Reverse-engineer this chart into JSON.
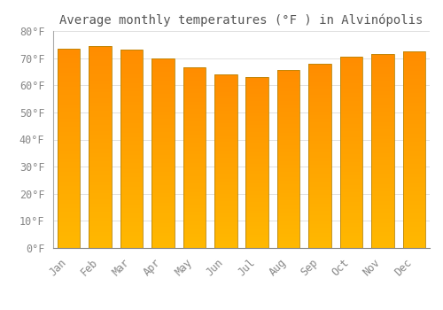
{
  "title": "Average monthly temperatures (°F ) in Alvinópolis",
  "months": [
    "Jan",
    "Feb",
    "Mar",
    "Apr",
    "May",
    "Jun",
    "Jul",
    "Aug",
    "Sep",
    "Oct",
    "Nov",
    "Dec"
  ],
  "values": [
    73.5,
    74.5,
    73.0,
    70.0,
    66.5,
    64.0,
    63.0,
    65.5,
    68.0,
    70.5,
    71.5,
    72.5
  ],
  "bar_color_bottom": "#FFB300",
  "bar_color_top": "#FF8C00",
  "bar_edge_color": "#CC7000",
  "ylim": [
    0,
    80
  ],
  "yticks": [
    0,
    10,
    20,
    30,
    40,
    50,
    60,
    70,
    80
  ],
  "ytick_labels": [
    "0°F",
    "10°F",
    "20°F",
    "30°F",
    "40°F",
    "50°F",
    "60°F",
    "70°F",
    "80°F"
  ],
  "bg_color": "#FFFFFF",
  "grid_color": "#E0E0E0",
  "title_fontsize": 10,
  "tick_fontsize": 8.5,
  "font_color": "#888888",
  "bar_width": 0.72
}
